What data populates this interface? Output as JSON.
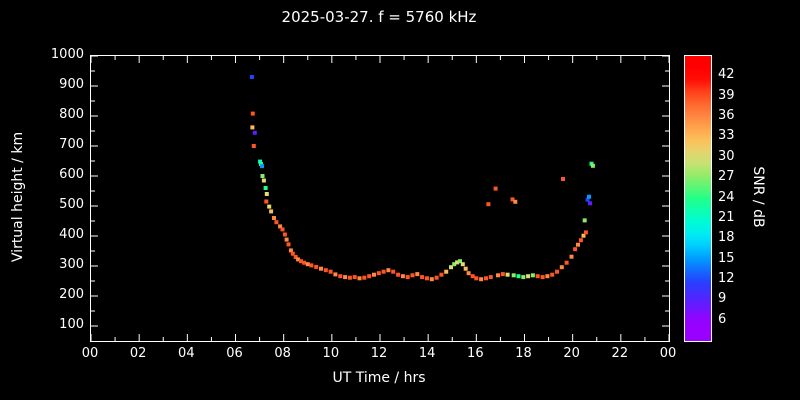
{
  "window": {
    "background": "#000000",
    "foreground": "#ffffff"
  },
  "chart_data": {
    "type": "scatter",
    "title": "2025-03-27. f = 5760 kHz",
    "xlabel": "UT Time / hrs",
    "ylabel": "Virtual height / km",
    "xlim": [
      0,
      24
    ],
    "ylim": [
      50,
      1000
    ],
    "grid": false,
    "xticks": {
      "values": [
        0,
        2,
        4,
        6,
        8,
        10,
        12,
        14,
        16,
        18,
        20,
        22,
        24
      ],
      "labels": [
        "00",
        "02",
        "04",
        "06",
        "08",
        "10",
        "12",
        "14",
        "16",
        "18",
        "20",
        "22",
        "00"
      ]
    },
    "yticks": [
      100,
      200,
      300,
      400,
      500,
      600,
      700,
      800,
      900,
      1000
    ],
    "colorbar": {
      "label": "SNR / dB",
      "ticks": [
        6,
        9,
        12,
        15,
        18,
        21,
        24,
        27,
        30,
        33,
        36,
        39,
        42
      ],
      "vmin": 3,
      "vmax": 45,
      "stops": [
        {
          "value": 6,
          "color": "#9900ff"
        },
        {
          "value": 9,
          "color": "#5522ff"
        },
        {
          "value": 12,
          "color": "#2244ff"
        },
        {
          "value": 15,
          "color": "#0099ff"
        },
        {
          "value": 18,
          "color": "#00e5ff"
        },
        {
          "value": 21,
          "color": "#00ffcc"
        },
        {
          "value": 24,
          "color": "#22ff88"
        },
        {
          "value": 27,
          "color": "#88ee66"
        },
        {
          "value": 30,
          "color": "#ddde77"
        },
        {
          "value": 33,
          "color": "#ffbb55"
        },
        {
          "value": 36,
          "color": "#ff8844"
        },
        {
          "value": 39,
          "color": "#ff5522"
        },
        {
          "value": 42,
          "color": "#ff0000"
        }
      ]
    },
    "points": [
      [
        6.68,
        930,
        12
      ],
      [
        6.72,
        808,
        39
      ],
      [
        6.7,
        762,
        33
      ],
      [
        6.8,
        744,
        9
      ],
      [
        6.76,
        700,
        39
      ],
      [
        7.02,
        648,
        21
      ],
      [
        7.06,
        640,
        24
      ],
      [
        7.1,
        633,
        15
      ],
      [
        7.12,
        600,
        27
      ],
      [
        7.18,
        585,
        30
      ],
      [
        7.25,
        560,
        24
      ],
      [
        7.3,
        540,
        30
      ],
      [
        7.28,
        515,
        39
      ],
      [
        7.4,
        498,
        30
      ],
      [
        7.48,
        482,
        33
      ],
      [
        7.6,
        460,
        36
      ],
      [
        7.7,
        446,
        39
      ],
      [
        7.85,
        432,
        36
      ],
      [
        7.95,
        422,
        39
      ],
      [
        8.05,
        405,
        39
      ],
      [
        8.12,
        388,
        36
      ],
      [
        8.2,
        372,
        39
      ],
      [
        8.3,
        352,
        36
      ],
      [
        8.38,
        341,
        39
      ],
      [
        8.5,
        330,
        39
      ],
      [
        8.6,
        322,
        36
      ],
      [
        8.72,
        316,
        39
      ],
      [
        8.85,
        311,
        39
      ],
      [
        9.0,
        306,
        36
      ],
      [
        9.15,
        302,
        39
      ],
      [
        9.35,
        297,
        39
      ],
      [
        9.55,
        291,
        36
      ],
      [
        9.75,
        286,
        39
      ],
      [
        9.95,
        281,
        39
      ],
      [
        10.15,
        272,
        36
      ],
      [
        10.35,
        266,
        39
      ],
      [
        10.55,
        263,
        36
      ],
      [
        10.75,
        261,
        39
      ],
      [
        10.95,
        263,
        39
      ],
      [
        11.15,
        259,
        36
      ],
      [
        11.35,
        261,
        39
      ],
      [
        11.55,
        266,
        39
      ],
      [
        11.75,
        271,
        36
      ],
      [
        11.95,
        276,
        39
      ],
      [
        12.15,
        281,
        39
      ],
      [
        12.35,
        286,
        36
      ],
      [
        12.55,
        281,
        39
      ],
      [
        12.75,
        271,
        39
      ],
      [
        12.95,
        266,
        36
      ],
      [
        13.15,
        263,
        39
      ],
      [
        13.35,
        269,
        39
      ],
      [
        13.55,
        273,
        36
      ],
      [
        13.75,
        263,
        39
      ],
      [
        13.95,
        259,
        39
      ],
      [
        14.15,
        256,
        36
      ],
      [
        14.35,
        261,
        39
      ],
      [
        14.55,
        271,
        39
      ],
      [
        14.75,
        281,
        33
      ],
      [
        14.95,
        296,
        30
      ],
      [
        15.08,
        306,
        27
      ],
      [
        15.2,
        312,
        30
      ],
      [
        15.32,
        316,
        27
      ],
      [
        15.44,
        306,
        30
      ],
      [
        15.56,
        291,
        33
      ],
      [
        15.68,
        276,
        36
      ],
      [
        15.85,
        266,
        39
      ],
      [
        16.0,
        259,
        39
      ],
      [
        16.2,
        256,
        36
      ],
      [
        16.4,
        259,
        39
      ],
      [
        16.5,
        506,
        39
      ],
      [
        16.6,
        263,
        39
      ],
      [
        16.8,
        558,
        39
      ],
      [
        16.9,
        269,
        36
      ],
      [
        17.1,
        273,
        39
      ],
      [
        17.3,
        271,
        30
      ],
      [
        17.5,
        522,
        39
      ],
      [
        17.62,
        514,
        36
      ],
      [
        17.55,
        269,
        27
      ],
      [
        17.75,
        266,
        24
      ],
      [
        17.95,
        263,
        27
      ],
      [
        18.15,
        266,
        30
      ],
      [
        18.35,
        269,
        27
      ],
      [
        18.55,
        266,
        39
      ],
      [
        18.75,
        263,
        39
      ],
      [
        18.95,
        266,
        36
      ],
      [
        19.15,
        271,
        39
      ],
      [
        19.35,
        281,
        39
      ],
      [
        19.55,
        296,
        36
      ],
      [
        19.6,
        590,
        39
      ],
      [
        19.75,
        311,
        39
      ],
      [
        19.95,
        331,
        36
      ],
      [
        20.1,
        356,
        39
      ],
      [
        20.22,
        371,
        36
      ],
      [
        20.34,
        386,
        39
      ],
      [
        20.45,
        401,
        33
      ],
      [
        20.55,
        412,
        39
      ],
      [
        20.5,
        452,
        27
      ],
      [
        20.62,
        521,
        12
      ],
      [
        20.68,
        531,
        15
      ],
      [
        20.72,
        509,
        9
      ],
      [
        20.78,
        641,
        24
      ],
      [
        20.84,
        634,
        27
      ]
    ]
  }
}
